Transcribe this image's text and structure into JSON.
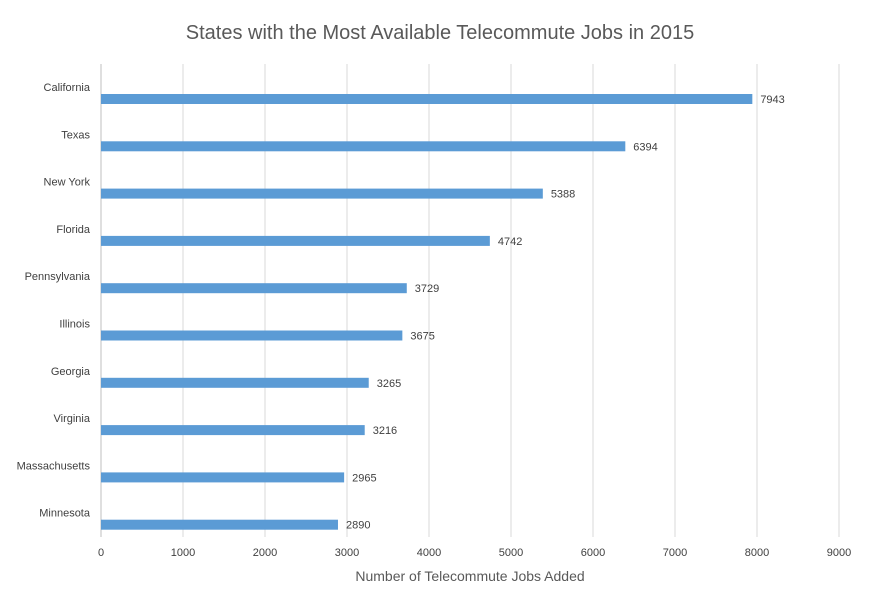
{
  "chart_data": {
    "type": "bar",
    "orientation": "horizontal",
    "title": "States with the Most Available Telecommute Jobs in 2015",
    "xlabel": "Number of Telecommute Jobs Added",
    "ylabel": "",
    "categories": [
      "California",
      "Texas",
      "New York",
      "Florida",
      "Pennsylvania",
      "Illinois",
      "Georgia",
      "Virginia",
      "Massachusetts",
      "Minnesota"
    ],
    "values": [
      7943,
      6394,
      5388,
      4742,
      3729,
      3675,
      3265,
      3216,
      2965,
      2890
    ],
    "xlim": [
      0,
      9000
    ],
    "xticks": [
      0,
      1000,
      2000,
      3000,
      4000,
      5000,
      6000,
      7000,
      8000,
      9000
    ],
    "grid": "vertical",
    "legend": "none",
    "bar_color": "#5B9BD5"
  }
}
